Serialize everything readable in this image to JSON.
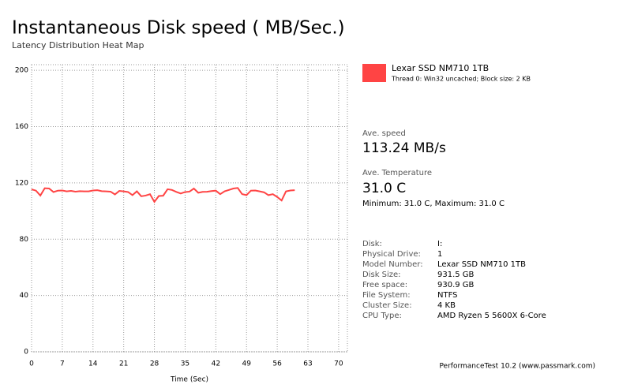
{
  "chart_data": {
    "type": "line",
    "title": "Instantaneous Disk speed ( MB/Sec.)",
    "subtitle": "Latency Distribution Heat Map",
    "x_label": "Time (Sec)",
    "x": [
      0,
      1,
      2,
      3,
      4,
      5,
      6,
      7,
      8,
      9,
      10,
      11,
      12,
      13,
      14,
      15,
      16,
      17,
      18,
      19,
      20,
      21,
      22,
      23,
      24,
      25,
      26,
      27,
      28,
      29,
      30,
      31,
      32,
      33,
      34,
      35,
      36,
      37,
      38,
      39,
      40,
      41,
      42,
      43,
      44,
      45,
      46,
      47,
      48,
      49,
      50,
      51,
      52,
      53,
      54,
      55,
      56,
      57,
      58,
      59,
      60
    ],
    "series": [
      {
        "name": "Lexar SSD NM710 1TB",
        "color": "#ff4444",
        "values": [
          115.4,
          114.5,
          111,
          116.2,
          116,
          113.5,
          114.5,
          114.6,
          114,
          114.3,
          113.8,
          114.1,
          114,
          114,
          114.6,
          114.8,
          114.1,
          114,
          113.8,
          111.8,
          114.3,
          114,
          113.5,
          111.3,
          114,
          110.5,
          111,
          112,
          106.5,
          110.7,
          110.9,
          115.5,
          115,
          113.6,
          112.5,
          113.5,
          113.8,
          116,
          113,
          113.6,
          113.7,
          114.2,
          114.5,
          112,
          114,
          115,
          116,
          116.4,
          112,
          111.3,
          114.5,
          114.6,
          114,
          113.3,
          111.3,
          112,
          110,
          107.5,
          114,
          114.6,
          114.8
        ]
      }
    ],
    "series_note": "Thread 0: Win32 uncached; Block size: 2 KB",
    "xlim": [
      0,
      72
    ],
    "xticks": [
      0,
      7,
      14,
      21,
      28,
      35,
      42,
      49,
      56,
      63,
      70
    ],
    "ylim": [
      0,
      204
    ],
    "yticks": [
      0,
      40,
      80,
      120,
      160,
      200
    ],
    "grid": true
  },
  "panel": {
    "speed_label": "Ave. speed",
    "speed": "113.24 MB/s",
    "temp_label": "Ave. Temperature",
    "temp": "31.0 C",
    "temp_range": "Minimum: 31.0 C, Maximum: 31.0 C",
    "info": [
      [
        "Disk:",
        "I:"
      ],
      [
        "Physical Drive:",
        "1"
      ],
      [
        "Model Number:",
        "Lexar SSD NM710 1TB"
      ],
      [
        "Disk Size:",
        "931.5 GB"
      ],
      [
        "Free space:",
        "930.9 GB"
      ],
      [
        "File System:",
        "NTFS"
      ],
      [
        "Cluster Size:",
        "4 KB"
      ],
      [
        "CPU Type:",
        "AMD Ryzen 5 5600X 6-Core"
      ]
    ],
    "footer": "PerformanceTest 10.2 (www.passmark.com)"
  }
}
